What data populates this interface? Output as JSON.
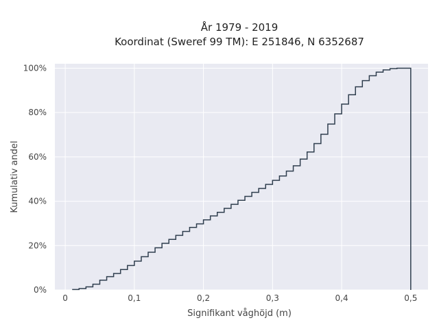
{
  "chart_data": {
    "type": "line",
    "title": "År 1979 - 2019",
    "subtitle": "Koordinat (Sweref 99 TM): E 251846, N 6352687",
    "xlabel": "Signifikant våghöjd (m)",
    "ylabel": "Kumulativ andel",
    "xlim": [
      -0.015,
      0.525
    ],
    "ylim": [
      0,
      1.02
    ],
    "x_ticks": [
      {
        "value": 0,
        "label": "0"
      },
      {
        "value": 0.1,
        "label": "0,1"
      },
      {
        "value": 0.2,
        "label": "0,2"
      },
      {
        "value": 0.3,
        "label": "0,3"
      },
      {
        "value": 0.4,
        "label": "0,4"
      },
      {
        "value": 0.5,
        "label": "0,5"
      }
    ],
    "y_ticks": [
      {
        "value": 0,
        "label": "0%"
      },
      {
        "value": 0.2,
        "label": "20%"
      },
      {
        "value": 0.4,
        "label": "40%"
      },
      {
        "value": 0.6,
        "label": "60%"
      },
      {
        "value": 0.8,
        "label": "80%"
      },
      {
        "value": 1.0,
        "label": "100%"
      }
    ],
    "grid": true,
    "line_color": "#2f3e4e",
    "series": [
      {
        "step": "post",
        "x": [
          0.01,
          0.02,
          0.03,
          0.04,
          0.05,
          0.06,
          0.07,
          0.08,
          0.09,
          0.1,
          0.11,
          0.12,
          0.13,
          0.14,
          0.15,
          0.16,
          0.17,
          0.18,
          0.19,
          0.2,
          0.21,
          0.22,
          0.23,
          0.24,
          0.25,
          0.26,
          0.27,
          0.28,
          0.29,
          0.3,
          0.31,
          0.32,
          0.33,
          0.34,
          0.35,
          0.36,
          0.37,
          0.38,
          0.39,
          0.4,
          0.41,
          0.42,
          0.43,
          0.44,
          0.45,
          0.46,
          0.47,
          0.48,
          0.49,
          0.5
        ],
        "y": [
          0.002,
          0.006,
          0.014,
          0.026,
          0.044,
          0.06,
          0.074,
          0.092,
          0.11,
          0.13,
          0.15,
          0.17,
          0.19,
          0.21,
          0.228,
          0.246,
          0.264,
          0.282,
          0.298,
          0.316,
          0.334,
          0.35,
          0.368,
          0.386,
          0.404,
          0.422,
          0.44,
          0.458,
          0.476,
          0.494,
          0.514,
          0.536,
          0.56,
          0.59,
          0.622,
          0.66,
          0.702,
          0.748,
          0.794,
          0.838,
          0.88,
          0.916,
          0.944,
          0.966,
          0.982,
          0.992,
          0.998,
          1.0,
          1.0,
          0.0
        ]
      }
    ]
  }
}
